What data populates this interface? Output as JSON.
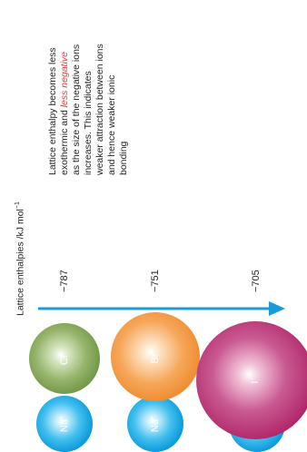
{
  "axis_label": {
    "text": "Lattice enthalpies /kJ mol",
    "unit_sup": "−1"
  },
  "rows": [
    {
      "cation": "Na",
      "cation_charge": "+",
      "anion": "Cl",
      "anion_charge": "−",
      "enthalpy": "−787"
    },
    {
      "cation": "Na",
      "cation_charge": "+",
      "anion": "Br",
      "anion_charge": "−",
      "enthalpy": "−751"
    },
    {
      "cation": "Na",
      "cation_charge": "+",
      "anion": "I",
      "anion_charge": "−",
      "enthalpy": "−705"
    }
  ],
  "note": {
    "part1": "Lattice enthalpy becomes less exothermic and ",
    "highlight": "less negative",
    "part2": " as the size of the negative ions increases. This indicates weaker attraction between ions and hence weaker ionic bonding"
  },
  "colors": {
    "arrow": "#1a9ad8",
    "cation": "#1aa3e0",
    "chloride": "#7aa04f",
    "bromide": "#f0923a",
    "iodide": "#a8225f",
    "highlight": "#e23a3a"
  }
}
